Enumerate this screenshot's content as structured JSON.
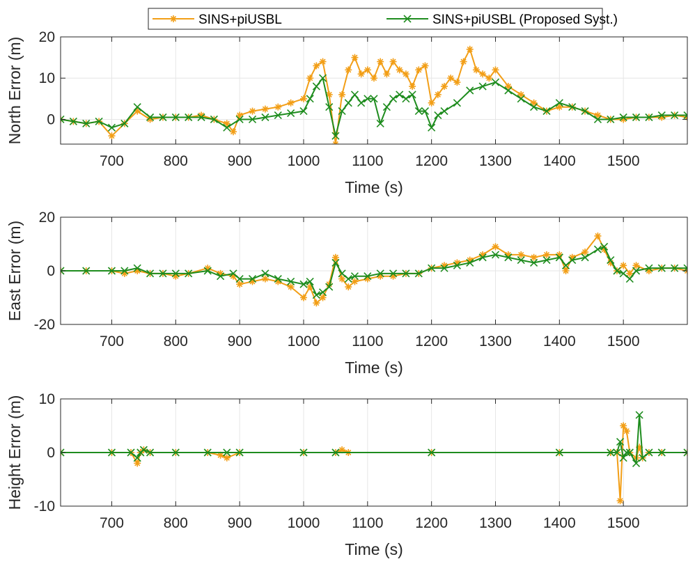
{
  "chart_data": {
    "type": "line",
    "legend": {
      "placement": "top-center",
      "entries": [
        {
          "name": "SINS+piUSBL",
          "color": "#f29e16",
          "marker": "*"
        },
        {
          "name": "SINS+piUSBL (Proposed Syst.)",
          "color": "#1e8c1e",
          "marker": "x"
        }
      ]
    },
    "panels": [
      {
        "ylabel": "North Error (m)",
        "xlabel": "Time (s)",
        "xlim": [
          620,
          1600
        ],
        "ylim": [
          -6,
          20
        ],
        "xticks": [
          700,
          800,
          900,
          1000,
          1100,
          1200,
          1300,
          1400,
          1500
        ],
        "xtick_labels": [
          "700",
          "800",
          "900",
          "1000",
          "1100",
          "1200",
          "1300",
          "1400",
          "1500"
        ],
        "yticks": [
          0,
          10,
          20
        ],
        "ytick_labels": [
          "0",
          "10",
          "20"
        ],
        "grid": true,
        "series": [
          {
            "name": "SINS+piUSBL",
            "x": [
              620,
              640,
              660,
              680,
              700,
              720,
              740,
              760,
              780,
              800,
              820,
              840,
              860,
              880,
              890,
              900,
              920,
              940,
              960,
              980,
              1000,
              1010,
              1020,
              1030,
              1040,
              1050,
              1060,
              1070,
              1080,
              1090,
              1100,
              1110,
              1120,
              1130,
              1140,
              1150,
              1160,
              1170,
              1180,
              1190,
              1200,
              1210,
              1220,
              1230,
              1240,
              1250,
              1260,
              1270,
              1280,
              1290,
              1300,
              1320,
              1340,
              1360,
              1380,
              1400,
              1420,
              1440,
              1460,
              1480,
              1500,
              1520,
              1540,
              1560,
              1580,
              1600
            ],
            "y": [
              0,
              -0.5,
              -1,
              -0.5,
              -4,
              -1,
              2,
              0,
              0.5,
              0.5,
              0.5,
              1,
              0,
              -1,
              -3,
              1,
              2,
              2.5,
              3,
              4,
              5,
              10,
              13,
              14,
              6,
              -6,
              6,
              12,
              15,
              11,
              12,
              10,
              14,
              11,
              14,
              12,
              11,
              8,
              12,
              13,
              4,
              6,
              8,
              10,
              9,
              14,
              17,
              12,
              11,
              10,
              12,
              8,
              6,
              4,
              2,
              3,
              3,
              2,
              1,
              0,
              0,
              0.5,
              0.5,
              0.5,
              1,
              0.5
            ]
          },
          {
            "name": "SINS+piUSBL (Proposed Syst.)",
            "x": [
              620,
              640,
              660,
              680,
              700,
              720,
              740,
              760,
              780,
              800,
              820,
              840,
              860,
              880,
              900,
              920,
              940,
              960,
              980,
              1000,
              1010,
              1020,
              1030,
              1040,
              1050,
              1060,
              1070,
              1080,
              1090,
              1100,
              1110,
              1120,
              1130,
              1140,
              1150,
              1160,
              1170,
              1180,
              1190,
              1200,
              1210,
              1220,
              1240,
              1260,
              1280,
              1300,
              1320,
              1340,
              1360,
              1380,
              1400,
              1420,
              1440,
              1460,
              1480,
              1500,
              1520,
              1540,
              1560,
              1580,
              1600
            ],
            "y": [
              0,
              -0.5,
              -1,
              -0.5,
              -2,
              -1,
              3,
              0.5,
              0.5,
              0.5,
              0.5,
              0.5,
              0,
              -2,
              0,
              0,
              0.5,
              1,
              1.5,
              2,
              5,
              8,
              10,
              3,
              -4,
              2,
              4,
              6,
              4,
              5,
              5,
              -1,
              3,
              5,
              6,
              5,
              6,
              2,
              2,
              -2,
              1,
              2,
              4,
              7,
              8,
              9,
              7,
              5,
              3,
              2,
              4,
              3,
              2,
              0,
              0,
              0.5,
              0.5,
              0.5,
              1,
              1,
              1
            ]
          }
        ]
      },
      {
        "ylabel": "East Error (m)",
        "xlabel": "Time (s)",
        "xlim": [
          620,
          1600
        ],
        "ylim": [
          -20,
          20
        ],
        "xticks": [
          700,
          800,
          900,
          1000,
          1100,
          1200,
          1300,
          1400,
          1500
        ],
        "xtick_labels": [
          "700",
          "800",
          "900",
          "1000",
          "1100",
          "1200",
          "1300",
          "1400",
          "1500"
        ],
        "yticks": [
          -20,
          0,
          20
        ],
        "ytick_labels": [
          "-20",
          "0",
          "20"
        ],
        "grid": true,
        "series": [
          {
            "name": "SINS+piUSBL",
            "x": [
              620,
              660,
              700,
              720,
              740,
              760,
              780,
              800,
              820,
              850,
              870,
              890,
              900,
              920,
              940,
              960,
              980,
              1000,
              1010,
              1020,
              1030,
              1040,
              1050,
              1060,
              1070,
              1080,
              1100,
              1120,
              1140,
              1160,
              1180,
              1200,
              1220,
              1240,
              1260,
              1280,
              1300,
              1320,
              1340,
              1360,
              1380,
              1400,
              1410,
              1420,
              1440,
              1460,
              1470,
              1480,
              1490,
              1500,
              1510,
              1520,
              1540,
              1560,
              1580,
              1600
            ],
            "y": [
              0,
              0,
              0,
              -1,
              0,
              -1,
              -1,
              -2,
              -1,
              1,
              -1,
              -2,
              -5,
              -4,
              -3,
              -4,
              -6,
              -10,
              -6,
              -12,
              -10,
              -5,
              5,
              -3,
              -6,
              -4,
              -3,
              -2,
              -2,
              -1,
              -1,
              1,
              2,
              3,
              4,
              6,
              9,
              6,
              6,
              5,
              6,
              6,
              0,
              5,
              7,
              13,
              8,
              3,
              0,
              2,
              -1,
              2,
              0,
              1,
              1,
              0
            ]
          },
          {
            "name": "SINS+piUSBL (Proposed Syst.)",
            "x": [
              620,
              660,
              700,
              720,
              740,
              760,
              780,
              800,
              820,
              850,
              870,
              890,
              900,
              920,
              940,
              960,
              980,
              1000,
              1010,
              1020,
              1030,
              1040,
              1050,
              1060,
              1070,
              1080,
              1100,
              1120,
              1140,
              1160,
              1180,
              1200,
              1220,
              1240,
              1260,
              1280,
              1300,
              1320,
              1340,
              1360,
              1380,
              1400,
              1410,
              1420,
              1440,
              1460,
              1470,
              1480,
              1490,
              1500,
              1510,
              1520,
              1540,
              1560,
              1580,
              1600
            ],
            "y": [
              0,
              0,
              0,
              0,
              1,
              -1,
              -1,
              -1,
              -1,
              0,
              -2,
              -1,
              -3,
              -3,
              -1,
              -3,
              -4,
              -5,
              -4,
              -9,
              -8,
              -6,
              3,
              -1,
              -3,
              -2,
              -2,
              -1,
              -1,
              -1,
              -1,
              1,
              1,
              2,
              3,
              5,
              6,
              5,
              4,
              3,
              4,
              5,
              2,
              4,
              5,
              8,
              9,
              4,
              0,
              -1,
              -3,
              0,
              1,
              1,
              1,
              1
            ]
          }
        ]
      },
      {
        "ylabel": "Height Error (m)",
        "xlabel": "Time (s)",
        "xlim": [
          620,
          1600
        ],
        "ylim": [
          -10,
          10
        ],
        "xticks": [
          700,
          800,
          900,
          1000,
          1100,
          1200,
          1300,
          1400,
          1500
        ],
        "xtick_labels": [
          "700",
          "800",
          "900",
          "1000",
          "1100",
          "1200",
          "1300",
          "1400",
          "1500"
        ],
        "yticks": [
          -10,
          0,
          10
        ],
        "ytick_labels": [
          "-10",
          "0",
          "10"
        ],
        "grid": true,
        "series": [
          {
            "name": "SINS+piUSBL",
            "x": [
              620,
              700,
              730,
              740,
              745,
              750,
              760,
              800,
              850,
              870,
              880,
              900,
              1000,
              1050,
              1060,
              1070,
              1200,
              1400,
              1480,
              1490,
              1495,
              1500,
              1505,
              1510,
              1520,
              1525,
              1530,
              1540,
              1560,
              1600
            ],
            "y": [
              0,
              0,
              0,
              -2,
              0,
              0.5,
              0,
              0,
              0,
              -0.5,
              -1,
              0,
              0,
              0,
              0.5,
              0,
              0,
              0,
              0,
              0,
              -9,
              5,
              4,
              0,
              -1,
              1,
              -1,
              0,
              0,
              0
            ]
          },
          {
            "name": "SINS+piUSBL (Proposed Syst.)",
            "x": [
              620,
              700,
              730,
              740,
              745,
              750,
              760,
              800,
              850,
              880,
              900,
              1000,
              1050,
              1200,
              1400,
              1480,
              1490,
              1495,
              1500,
              1505,
              1510,
              1520,
              1525,
              1530,
              1540,
              1560,
              1600
            ],
            "y": [
              0,
              0,
              0,
              -1,
              0,
              0.5,
              0,
              0,
              0,
              0,
              0,
              0,
              0,
              0,
              0,
              0,
              0,
              2,
              -1,
              0,
              0,
              -2,
              7,
              -1,
              0,
              0,
              0
            ]
          }
        ]
      }
    ]
  }
}
